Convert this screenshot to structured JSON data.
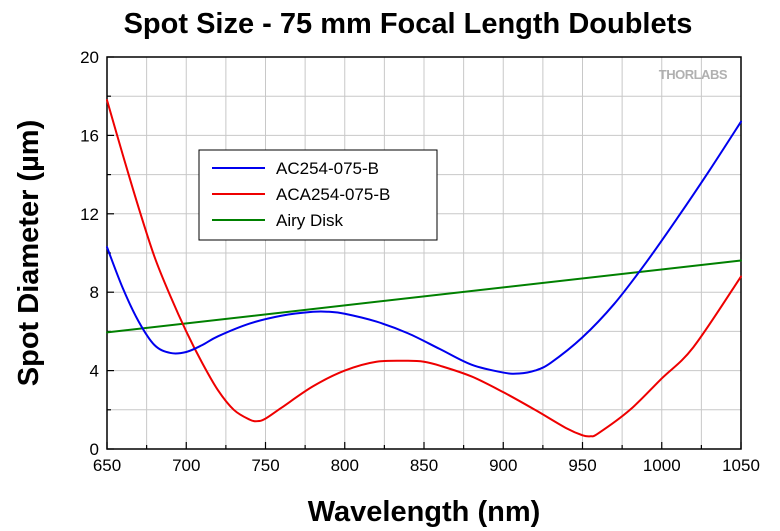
{
  "chart_data": {
    "type": "line",
    "title": "Spot Size - 75 mm Focal Length Doublets",
    "xlabel": "Wavelength (nm)",
    "ylabel": "Spot Diameter (µm)",
    "xlim": [
      650,
      1050
    ],
    "ylim": [
      0,
      20
    ],
    "xticks": [
      "650",
      "700",
      "750",
      "800",
      "850",
      "900",
      "950",
      "1000",
      "1050"
    ],
    "yticks": [
      "0",
      "4",
      "8",
      "12",
      "16",
      "20"
    ],
    "grid": true,
    "legend_position": "upper-left",
    "watermark": "THORLABS",
    "series": [
      {
        "name": "AC254-075-B",
        "color": "#0000ee",
        "x": [
          650,
          660,
          670,
          680,
          690,
          700,
          710,
          720,
          740,
          760,
          780,
          790,
          800,
          820,
          840,
          860,
          880,
          900,
          910,
          920,
          930,
          950,
          970,
          990,
          1010,
          1030,
          1050
        ],
        "y": [
          10.3,
          8.2,
          6.5,
          5.3,
          4.9,
          4.95,
          5.3,
          5.75,
          6.4,
          6.8,
          7.0,
          7.0,
          6.9,
          6.5,
          5.9,
          5.1,
          4.3,
          3.9,
          3.85,
          4.0,
          4.4,
          5.7,
          7.4,
          9.5,
          11.8,
          14.2,
          16.7
        ]
      },
      {
        "name": "ACA254-075-B",
        "color": "#ee0000",
        "x": [
          650,
          660,
          670,
          680,
          690,
          700,
          710,
          720,
          730,
          740,
          745,
          750,
          760,
          780,
          800,
          820,
          840,
          850,
          860,
          880,
          900,
          920,
          940,
          950,
          955,
          960,
          980,
          1000,
          1020,
          1050
        ],
        "y": [
          17.8,
          15.0,
          12.3,
          9.8,
          7.8,
          6.0,
          4.4,
          3.0,
          2.0,
          1.5,
          1.42,
          1.55,
          2.1,
          3.2,
          4.0,
          4.45,
          4.5,
          4.45,
          4.25,
          3.7,
          2.9,
          2.0,
          1.05,
          0.7,
          0.65,
          0.8,
          2.0,
          3.6,
          5.2,
          8.8
        ]
      },
      {
        "name": "Airy Disk",
        "color": "#008000",
        "x": [
          650,
          1050
        ],
        "y": [
          5.95,
          9.62
        ]
      }
    ]
  }
}
